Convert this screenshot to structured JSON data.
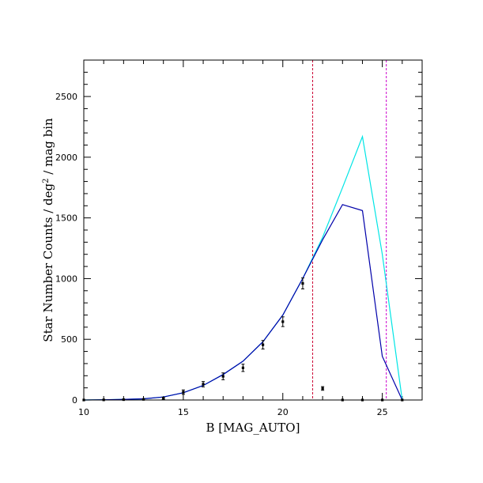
{
  "chart_data": {
    "type": "line",
    "title": "",
    "xlabel": "B [MAG_AUTO]",
    "ylabel_main": "Star Number Counts / deg",
    "ylabel_sup": "2",
    "ylabel_tail": " / mag bin",
    "xlim": [
      10,
      27
    ],
    "ylim": [
      0,
      2800
    ],
    "x_major_ticks": [
      10,
      15,
      20,
      25
    ],
    "x_minor_step": 1,
    "y_major_ticks": [
      0,
      500,
      1000,
      1500,
      2000,
      2500
    ],
    "y_minor_step": 100,
    "grid": false,
    "vertical_lines": [
      {
        "x": 21.5,
        "color": "#cc0033"
      },
      {
        "x": 25.2,
        "color": "#cc00cc"
      }
    ],
    "series": [
      {
        "style": "line",
        "color": "#00e5e5",
        "x": [
          10,
          11,
          12,
          13,
          14,
          15,
          16,
          17,
          18,
          19,
          20,
          21,
          22,
          23,
          24,
          25,
          26
        ],
        "y": [
          0,
          2,
          5,
          10,
          25,
          60,
          120,
          210,
          320,
          480,
          700,
          1000,
          1340,
          1750,
          2170,
          1200,
          0
        ]
      },
      {
        "style": "line",
        "color": "#0000aa",
        "x": [
          10,
          11,
          12,
          13,
          14,
          15,
          16,
          17,
          18,
          19,
          20,
          21,
          22,
          23,
          24,
          25,
          26
        ],
        "y": [
          0,
          2,
          5,
          10,
          25,
          60,
          120,
          210,
          320,
          480,
          700,
          1000,
          1320,
          1610,
          1560,
          360,
          0
        ]
      },
      {
        "style": "points",
        "color": "#000000",
        "x": [
          10,
          11,
          12,
          13,
          14,
          15,
          16,
          17,
          18,
          19,
          20,
          21,
          22,
          23,
          24,
          25,
          26
        ],
        "y": [
          0,
          1,
          3,
          5,
          15,
          65,
          130,
          195,
          265,
          455,
          645,
          960,
          95,
          0,
          0,
          0,
          0
        ],
        "yerr": [
          0,
          1,
          2,
          4,
          8,
          18,
          22,
          28,
          30,
          35,
          40,
          45,
          15,
          0,
          0,
          0,
          0
        ]
      }
    ]
  }
}
